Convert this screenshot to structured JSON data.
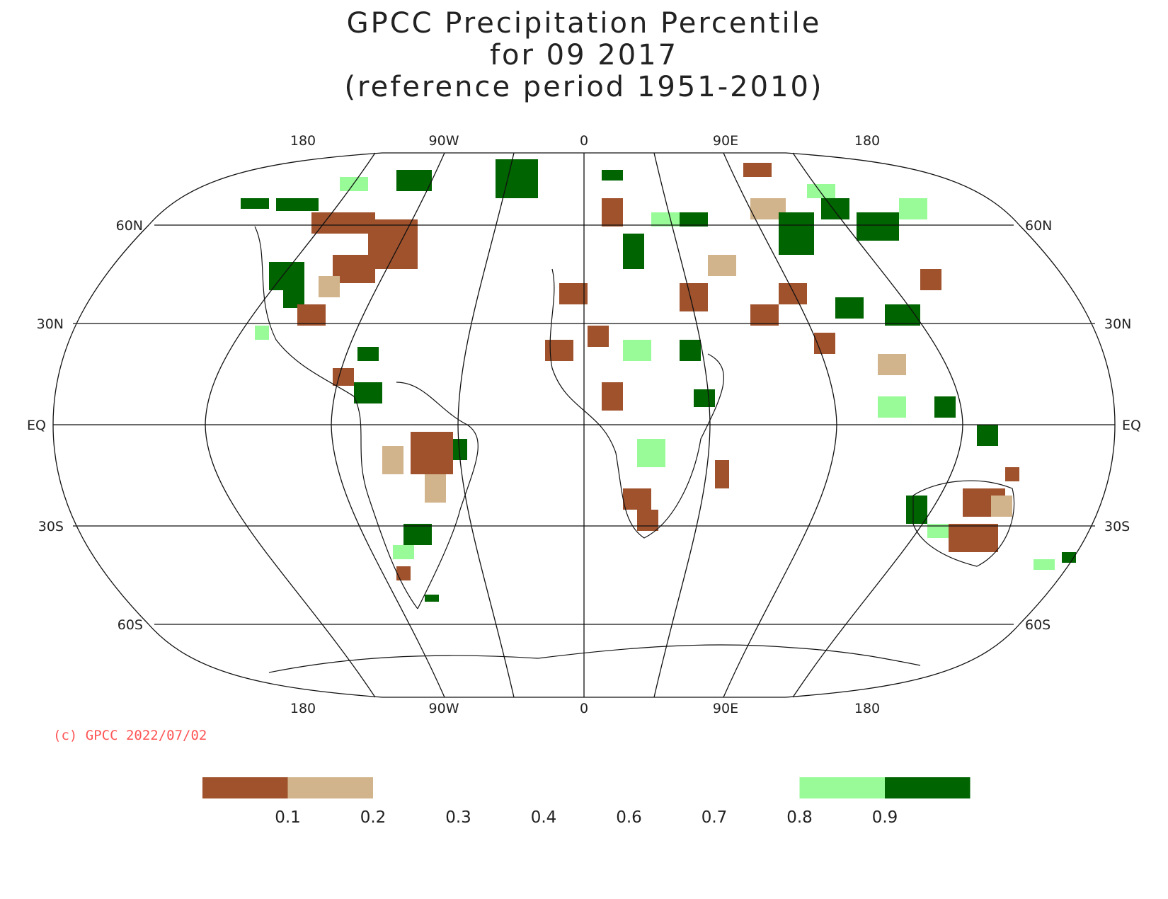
{
  "title": {
    "line1": "GPCC Precipitation Percentile",
    "line2": "for 09 2017",
    "line3": "(reference period 1951-2010)"
  },
  "map": {
    "projection": "Robinson",
    "central_meridian": 0,
    "top_lon_labels": [
      "180",
      "90W",
      "0",
      "90E",
      "180"
    ],
    "bottom_lon_labels": [
      "180",
      "90W",
      "0",
      "90E",
      "180"
    ],
    "lat_labels_left": [
      "60N",
      "30N",
      "EQ",
      "30S",
      "60S"
    ],
    "lat_labels_right": [
      "60N",
      "30N",
      "EQ",
      "30S",
      "60S"
    ],
    "copyright": "(c) GPCC 2022/07/02"
  },
  "colorbar": {
    "colors": [
      "#a0522d",
      "#d2b48c",
      "#ffffff",
      "#ffffff",
      "#ffffff",
      "#ffffff",
      "#ffffff",
      "#98fb98",
      "#006400"
    ],
    "labels": [
      "0.1",
      "0.2",
      "0.3",
      "0.4",
      "0.6",
      "0.7",
      "0.8",
      "0.9"
    ]
  },
  "colors": {
    "very_dry": "#a0522d",
    "dry": "#d2b48c",
    "wet": "#98fb98",
    "very_wet": "#006400",
    "copyright": "#ff5555"
  }
}
